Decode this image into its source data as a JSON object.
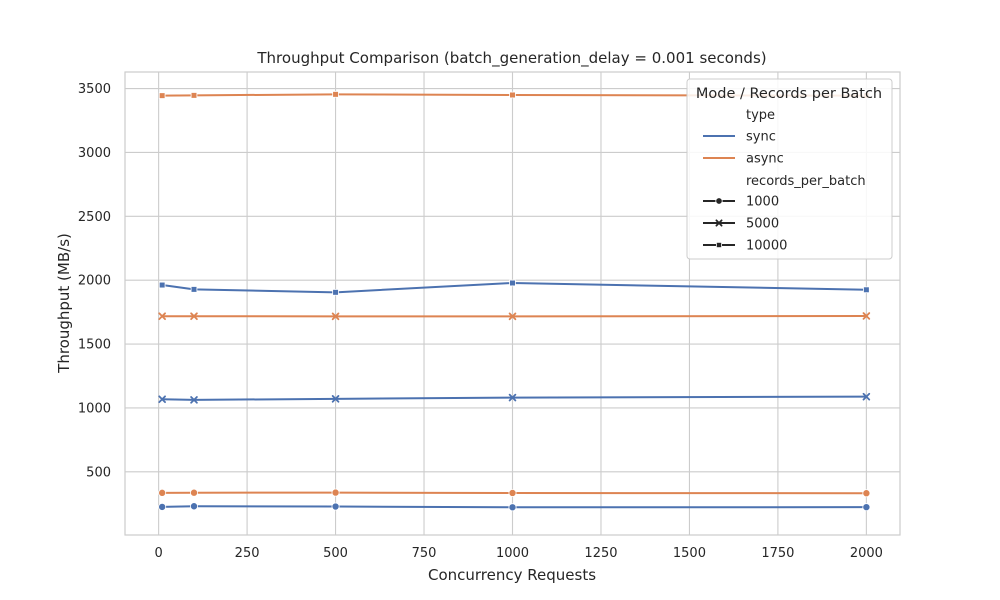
{
  "chart_data": {
    "type": "line",
    "title": "Throughput Comparison (batch_generation_delay = 0.001 seconds)",
    "xlabel": "Concurrency Requests",
    "ylabel": "Throughput (MB/s)",
    "x_ticks": [
      0,
      250,
      500,
      750,
      1000,
      1250,
      1500,
      1750,
      2000
    ],
    "y_ticks": [
      500,
      1000,
      1500,
      2000,
      2500,
      3000,
      3500
    ],
    "xlim": [
      -95,
      2095
    ],
    "ylim": [
      5,
      3630
    ],
    "grid": true,
    "legend": {
      "title": "Mode / Records per Batch",
      "placement": "top-right",
      "type_header": "type",
      "type_entries": [
        {
          "label": "sync",
          "color": "#4c72b0"
        },
        {
          "label": "async",
          "color": "#dd8452"
        }
      ],
      "rpb_header": "records_per_batch",
      "rpb_entries": [
        {
          "label": "1000",
          "marker": "circle"
        },
        {
          "label": "5000",
          "marker": "x"
        },
        {
          "label": "10000",
          "marker": "square"
        }
      ]
    },
    "x": [
      10,
      100,
      500,
      1000,
      2000
    ],
    "series": [
      {
        "type": "sync",
        "records_per_batch": "1000",
        "color": "#4c72b0",
        "marker": "circle",
        "values": [
          225,
          230,
          228,
          222,
          223
        ]
      },
      {
        "type": "sync",
        "records_per_batch": "5000",
        "color": "#4c72b0",
        "marker": "x",
        "values": [
          1068,
          1063,
          1071,
          1081,
          1088
        ]
      },
      {
        "type": "sync",
        "records_per_batch": "10000",
        "color": "#4c72b0",
        "marker": "square",
        "values": [
          1962,
          1928,
          1905,
          1978,
          1925
        ]
      },
      {
        "type": "async",
        "records_per_batch": "1000",
        "color": "#dd8452",
        "marker": "circle",
        "values": [
          335,
          336,
          337,
          334,
          332
        ]
      },
      {
        "type": "async",
        "records_per_batch": "5000",
        "color": "#dd8452",
        "marker": "x",
        "values": [
          1718,
          1718,
          1717,
          1717,
          1720
        ]
      },
      {
        "type": "async",
        "records_per_batch": "10000",
        "color": "#dd8452",
        "marker": "square",
        "values": [
          3445,
          3447,
          3455,
          3450,
          3445
        ]
      }
    ]
  }
}
